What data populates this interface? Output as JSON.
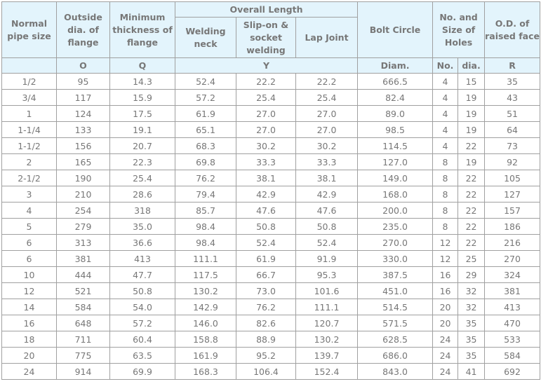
{
  "header": {
    "normal_pipe_size": "Normal pipe size",
    "outside_dia": "Outside dia. of flange",
    "min_thickness": "Minimum thickness of flange",
    "overall_length": "Overall Length",
    "welding_neck": "Welding neck",
    "slip_on": "Slip-on & socket welding",
    "lap_joint": "Lap Joint",
    "bolt_circle": "Bolt Circle",
    "holes": "No. and Size of Holes",
    "raised_face": "O.D. of raised face",
    "sub": {
      "o": "O",
      "q": "Q",
      "y": "Y",
      "diam": "Diam.",
      "no": "No.",
      "dia": "dia.",
      "r": "R"
    }
  },
  "rows": [
    [
      "1/2",
      "95",
      "14.3",
      "52.4",
      "22.2",
      "22.2",
      "666.5",
      "4",
      "15",
      "35"
    ],
    [
      "3/4",
      "117",
      "15.9",
      "57.2",
      "25.4",
      "25.4",
      "82.4",
      "4",
      "19",
      "43"
    ],
    [
      "1",
      "124",
      "17.5",
      "61.9",
      "27.0",
      "27.0",
      "89.0",
      "4",
      "19",
      "51"
    ],
    [
      "1-1/4",
      "133",
      "19.1",
      "65.1",
      "27.0",
      "27.0",
      "98.5",
      "4",
      "19",
      "64"
    ],
    [
      "1-1/2",
      "156",
      "20.7",
      "68.3",
      "30.2",
      "30.2",
      "114.5",
      "4",
      "22",
      "73"
    ],
    [
      "2",
      "165",
      "22.3",
      "69.8",
      "33.3",
      "33.3",
      "127.0",
      "8",
      "19",
      "92"
    ],
    [
      "2-1/2",
      "190",
      "25.4",
      "76.2",
      "38.1",
      "38.1",
      "149.0",
      "8",
      "22",
      "105"
    ],
    [
      "3",
      "210",
      "28.6",
      "79.4",
      "42.9",
      "42.9",
      "168.0",
      "8",
      "22",
      "127"
    ],
    [
      "4",
      "254",
      "318",
      "85.7",
      "47.6",
      "47.6",
      "200.0",
      "8",
      "22",
      "157"
    ],
    [
      "5",
      "279",
      "35.0",
      "98.4",
      "50.8",
      "50.8",
      "235.0",
      "8",
      "22",
      "186"
    ],
    [
      "6",
      "313",
      "36.6",
      "98.4",
      "52.4",
      "52.4",
      "270.0",
      "12",
      "22",
      "216"
    ],
    [
      "6",
      "381",
      "413",
      "111.1",
      "61.9",
      "91.9",
      "330.0",
      "12",
      "25",
      "270"
    ],
    [
      "10",
      "444",
      "47.7",
      "117.5",
      "66.7",
      "95.3",
      "387.5",
      "16",
      "29",
      "324"
    ],
    [
      "12",
      "521",
      "50.8",
      "130.2",
      "73.0",
      "101.6",
      "451.0",
      "16",
      "32",
      "381"
    ],
    [
      "14",
      "584",
      "54.0",
      "142.9",
      "76.2",
      "111.1",
      "514.5",
      "20",
      "32",
      "413"
    ],
    [
      "16",
      "648",
      "57.2",
      "146.0",
      "82.6",
      "120.7",
      "571.5",
      "20",
      "35",
      "470"
    ],
    [
      "18",
      "711",
      "60.4",
      "158.8",
      "88.9",
      "130.2",
      "628.5",
      "24",
      "35",
      "533"
    ],
    [
      "20",
      "775",
      "63.5",
      "161.9",
      "95.2",
      "139.7",
      "686.0",
      "24",
      "35",
      "584"
    ],
    [
      "24",
      "914",
      "69.9",
      "168.3",
      "106.4",
      "152.4",
      "843.0",
      "24",
      "41",
      "692"
    ]
  ]
}
